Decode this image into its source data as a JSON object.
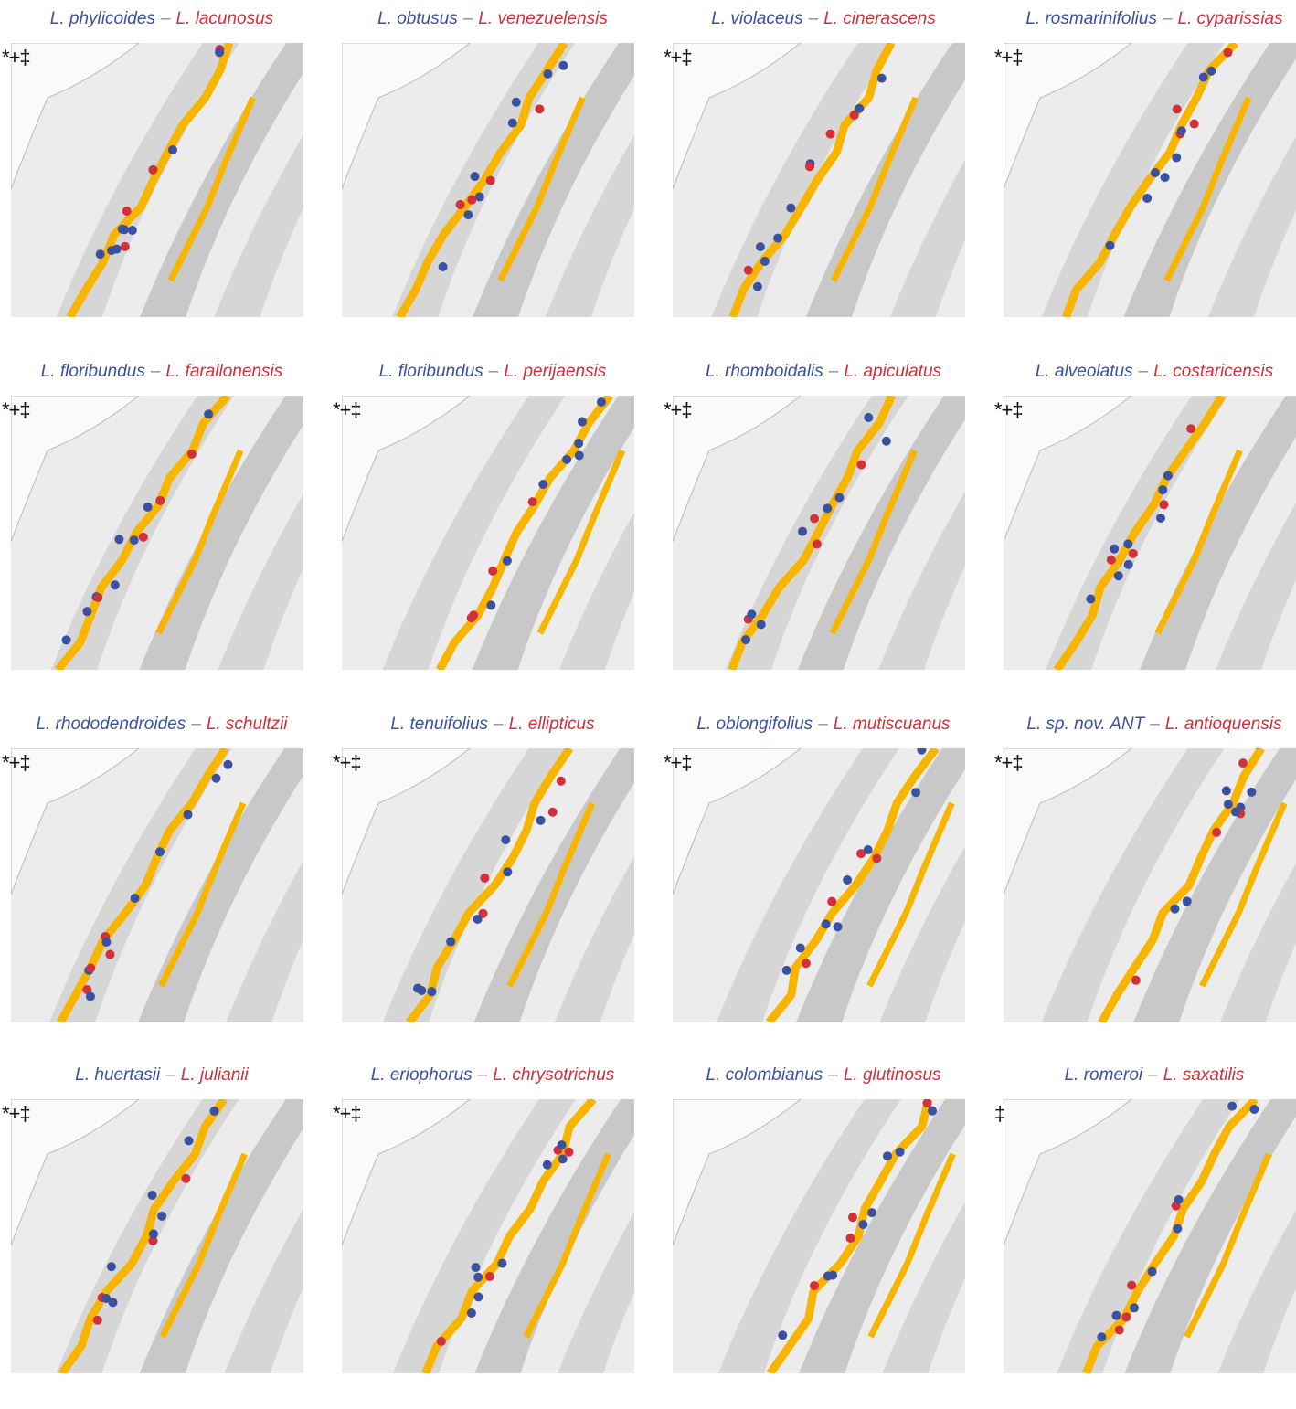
{
  "separator": "–",
  "panels": [
    {
      "species_a": "L. phylicoides",
      "species_b": "L. lacunosus",
      "symbols": "*+‡"
    },
    {
      "species_a": "L. obtusus",
      "species_b": "L. venezuelensis",
      "symbols": ""
    },
    {
      "species_a": "L. violaceus",
      "species_b": "L. cinerascens",
      "symbols": "*+‡"
    },
    {
      "species_a": "L. rosmarinifolius",
      "species_b": "L. cyparissias",
      "symbols": "*+‡"
    },
    {
      "species_a": "L. floribundus",
      "species_b": "L. farallonensis",
      "symbols": "*+‡"
    },
    {
      "species_a": "L. floribundus",
      "species_b": "L. perijaensis",
      "symbols": "*+‡"
    },
    {
      "species_a": "L. rhomboidalis",
      "species_b": "L. apiculatus",
      "symbols": "*+‡"
    },
    {
      "species_a": "L. alveolatus",
      "species_b": "L. costaricensis",
      "symbols": "*+‡"
    },
    {
      "species_a": "L. rhododendroides",
      "species_b": "L. schultzii",
      "symbols": "*+‡"
    },
    {
      "species_a": "L. tenuifolius",
      "species_b": "L. ellipticus",
      "symbols": "*+‡"
    },
    {
      "species_a": "L. oblongifolius",
      "species_b": "L. mutiscuanus",
      "symbols": "*+‡"
    },
    {
      "species_a": "L. sp. nov. ANT",
      "species_b": "L. antioquensis",
      "symbols": "*+‡"
    },
    {
      "species_a": "L. huertasii",
      "species_b": "L. julianii",
      "symbols": "*+‡"
    },
    {
      "species_a": "L. eriophorus",
      "species_b": "L. chrysotrichus",
      "symbols": "*+‡"
    },
    {
      "species_a": "L. colombianus",
      "species_b": "L. glutinosus",
      "symbols": ""
    },
    {
      "species_a": "L. romeroi",
      "species_b": "L. saxatilis",
      "symbols": "‡"
    }
  ]
}
